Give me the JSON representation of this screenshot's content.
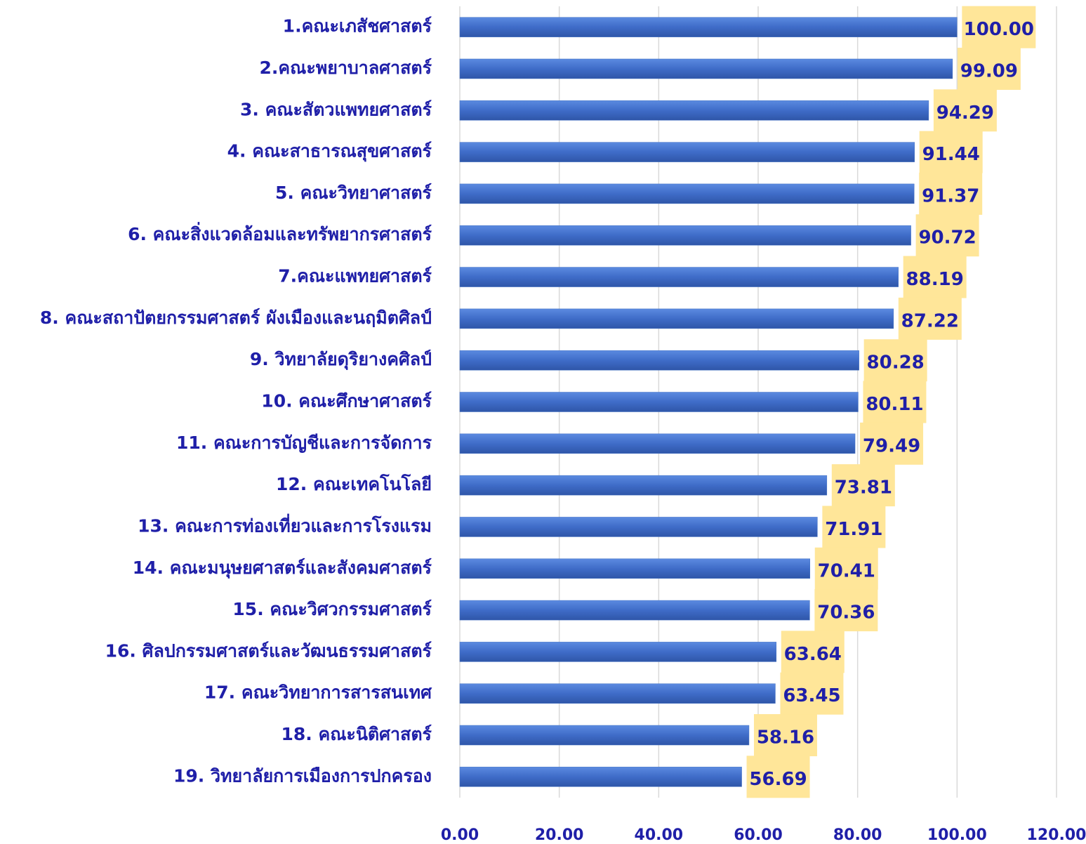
{
  "chart_data": {
    "type": "bar",
    "orientation": "horizontal",
    "categories": [
      "1.คณะเภสัชศาสตร์",
      "2.คณะพยาบาลศาสตร์",
      "3. คณะสัตวแพทยศาสตร์",
      "4. คณะสาธารณสุขศาสตร์",
      "5. คณะวิทยาศาสตร์",
      "6. คณะสิ่งแวดล้อมและทรัพยากรศาสตร์",
      "7.คณะแพทยศาสตร์",
      "8. คณะสถาปัตยกรรมศาสตร์ ผังเมืองและนฤมิตศิลป์",
      "9. วิทยาลัยดุริยางคศิลป์",
      "10. คณะศึกษาศาสตร์",
      "11. คณะการบัญชีและการจัดการ",
      "12. คณะเทคโนโลยี",
      "13. คณะการท่องเที่ยวและการโรงแรม",
      "14. คณะมนุษยศาสตร์และสังคมศาสตร์",
      "15. คณะวิศวกรรมศาสตร์",
      "16. ศิลปกรรมศาสตร์และวัฒนธรรมศาสตร์",
      "17. คณะวิทยาการสารสนเทศ",
      "18. คณะนิติศาสตร์",
      "19. วิทยาลัยการเมืองการปกครอง"
    ],
    "values": [
      100,
      99.09,
      94.29,
      91.44,
      91.37,
      90.72,
      88.19,
      87.22,
      80.28,
      80.11,
      79.49,
      73.81,
      71.91,
      70.41,
      70.36,
      63.64,
      63.45,
      58.16,
      56.69
    ],
    "value_labels": [
      "100.00",
      "99.09",
      "94.29",
      "91.44",
      "91.37",
      "90.72",
      "88.19",
      "87.22",
      "80.28",
      "80.11",
      "79.49",
      "73.81",
      "71.91",
      "70.41",
      "70.36",
      "63.64",
      "63.45",
      "58.16",
      "56.69"
    ],
    "color": "#4472c4",
    "label_background": "#ffe699",
    "xlim": [
      0,
      120
    ],
    "xticks": [
      {
        "value": 0,
        "label": "0.00"
      },
      {
        "value": 20,
        "label": "20.00"
      },
      {
        "value": 40,
        "label": "40.00"
      },
      {
        "value": 60,
        "label": "60.00"
      },
      {
        "value": 80,
        "label": "80.00"
      },
      {
        "value": 100,
        "label": "100.00"
      },
      {
        "value": 120,
        "label": "120.00"
      }
    ],
    "grid": true
  }
}
